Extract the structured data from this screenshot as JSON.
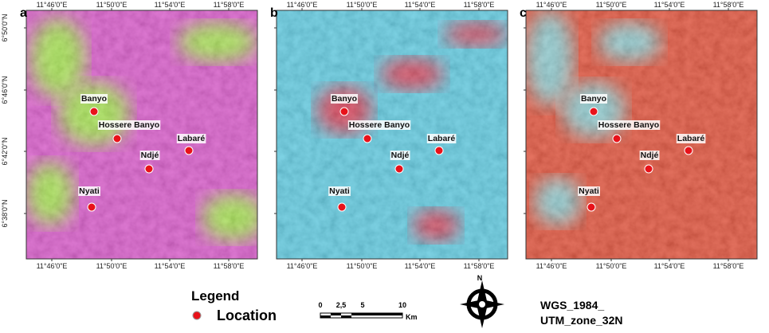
{
  "panels": [
    {
      "letter": "a"
    },
    {
      "letter": "b"
    },
    {
      "letter": "c"
    }
  ],
  "lon_labels": [
    "11°46'0\"E",
    "11°50'0\"E",
    "11°54'0\"E",
    "11°58'0\"E"
  ],
  "lat_labels": [
    "6°50'0\"N",
    "6°46'0\"N",
    "6°42'0\"N",
    "6°38'0\"N"
  ],
  "places": [
    "Banyo",
    "Hossere Banyo",
    "Labaré",
    "Ndjé",
    "Nyati"
  ],
  "legend": {
    "title": "Legend",
    "item": "Location"
  },
  "scale_bar": {
    "ticks": [
      "0",
      "2,5",
      "5",
      "10"
    ],
    "unit": "Km"
  },
  "north_arrow": "N",
  "projection": [
    "WGS_1984_",
    "UTM_zone_32N"
  ]
}
